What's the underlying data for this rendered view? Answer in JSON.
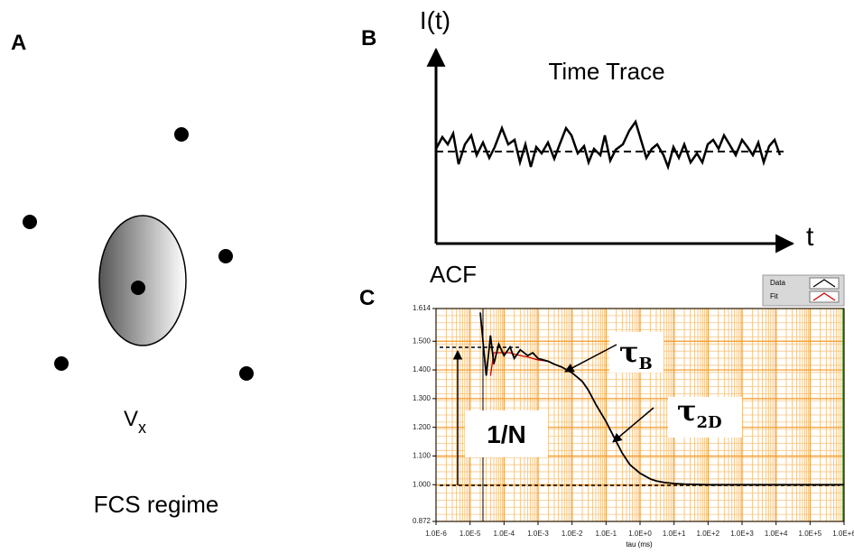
{
  "panel_a": {
    "label": "A",
    "volume": "V",
    "volume_subscript": "x",
    "caption": "FCS regime"
  },
  "panel_b": {
    "label": "B",
    "y_label": "I(t)",
    "x_label": "t",
    "title": "Time Trace"
  },
  "panel_c_label": "C",
  "chart_data": {
    "type": "line",
    "y_label": "ACF",
    "x_label": "tau (ms)",
    "log_x": true,
    "grid": true,
    "legend": "top-right",
    "x": [
      2e-05,
      3e-05,
      4e-05,
      5e-05,
      7e-05,
      0.0001,
      0.00015,
      0.0002,
      0.0003,
      0.0005,
      0.0007,
      0.001,
      0.002,
      0.003,
      0.005,
      0.01,
      0.02,
      0.03,
      0.05,
      0.1,
      0.2,
      0.3,
      0.5,
      1,
      2,
      3,
      5,
      10,
      20,
      100,
      1000,
      10000,
      100000,
      1000000
    ],
    "series": [
      {
        "name": "Data",
        "color": "#000000",
        "values": [
          1.6,
          1.38,
          1.52,
          1.42,
          1.49,
          1.45,
          1.48,
          1.44,
          1.47,
          1.45,
          1.46,
          1.44,
          1.43,
          1.42,
          1.41,
          1.39,
          1.36,
          1.33,
          1.28,
          1.22,
          1.15,
          1.11,
          1.07,
          1.04,
          1.02,
          1.013,
          1.008,
          1.004,
          1.002,
          1.0,
          1.0,
          1.0,
          1.0,
          1.0
        ]
      },
      {
        "name": "Fit",
        "color": "#cc0000",
        "values": [
          null,
          null,
          1.38,
          1.46,
          1.46,
          1.46,
          1.46,
          1.455,
          1.45,
          1.445,
          1.44,
          1.435,
          1.43,
          1.42,
          1.41,
          1.39,
          1.36,
          1.33,
          1.28,
          1.22,
          1.15,
          1.11,
          1.07,
          1.04,
          1.02,
          1.013,
          1.008,
          1.004,
          1.002,
          1.0,
          1.0,
          1.0,
          1.0,
          1.0
        ]
      }
    ],
    "xlim": [
      1e-06,
      1000000.0
    ],
    "xticks": [
      {
        "value": 1e-06,
        "label": "1.0E-6"
      },
      {
        "value": 1e-05,
        "label": "1.0E-5"
      },
      {
        "value": 0.0001,
        "label": "1.0E-4"
      },
      {
        "value": 0.001,
        "label": "1.0E-3"
      },
      {
        "value": 0.01,
        "label": "1.0E-2"
      },
      {
        "value": 0.1,
        "label": "1.0E-1"
      },
      {
        "value": 1,
        "label": "1.0E+0"
      },
      {
        "value": 10,
        "label": "1.0E+1"
      },
      {
        "value": 100,
        "label": "1.0E+2"
      },
      {
        "value": 1000,
        "label": "1.0E+3"
      },
      {
        "value": 10000,
        "label": "1.0E+4"
      },
      {
        "value": 100000,
        "label": "1.0E+5"
      },
      {
        "value": 1000000,
        "label": "1.0E+6"
      }
    ],
    "ylim": [
      0.872,
      1.614
    ],
    "yticks": [
      0.872,
      {
        "value": 1,
        "label": "1.000"
      },
      {
        "value": 1.1,
        "label": "1.100"
      },
      {
        "value": 1.2,
        "label": "1.200"
      },
      {
        "value": 1.3,
        "label": "1.300"
      },
      {
        "value": 1.4,
        "label": "1.400"
      },
      {
        "value": 1.5,
        "label": "1.500"
      },
      1.614
    ],
    "annotations": [
      {
        "text": "τ",
        "subscript": "B"
      },
      {
        "text": "τ",
        "subscript": "2D"
      },
      {
        "text": "1/N"
      }
    ]
  }
}
